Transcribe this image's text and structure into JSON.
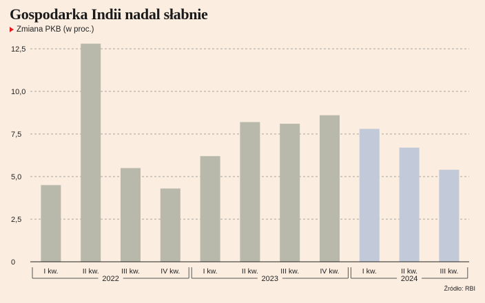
{
  "title": "Gospodarka Indii nadal słabnie",
  "subtitle": "Zmiana PKB (w proc.)",
  "source": "Źródło: RBI",
  "colors": {
    "background": "#fbede0",
    "bar_actual": "#b8b8ab",
    "bar_recent": "#c2c9d8",
    "marker": "#e02020",
    "grid": "#a9a49a"
  },
  "chart_data": {
    "type": "bar",
    "categories": [
      "I kw.",
      "II kw.",
      "III kw.",
      "IV kw.",
      "I kw.",
      "II kw.",
      "III kw.",
      "IV kw.",
      "I kw.",
      "II kw.",
      "III kw."
    ],
    "years": [
      {
        "label": "2022",
        "from": 0,
        "to": 3
      },
      {
        "label": "2023",
        "from": 4,
        "to": 7
      },
      {
        "label": "2024",
        "from": 8,
        "to": 10
      }
    ],
    "values": [
      4.5,
      12.8,
      5.5,
      4.3,
      6.2,
      8.2,
      8.1,
      8.6,
      7.8,
      6.7,
      5.4
    ],
    "highlight_from_index": 8,
    "yticks": [
      0,
      2.5,
      5.0,
      7.5,
      10.0,
      12.5
    ],
    "ytick_labels": [
      "0",
      "2,5",
      "5,0",
      "7,5",
      "10,0",
      "12,5"
    ],
    "ylim": [
      0,
      12.5
    ],
    "grid": true,
    "xlabel": "",
    "ylabel": ""
  }
}
